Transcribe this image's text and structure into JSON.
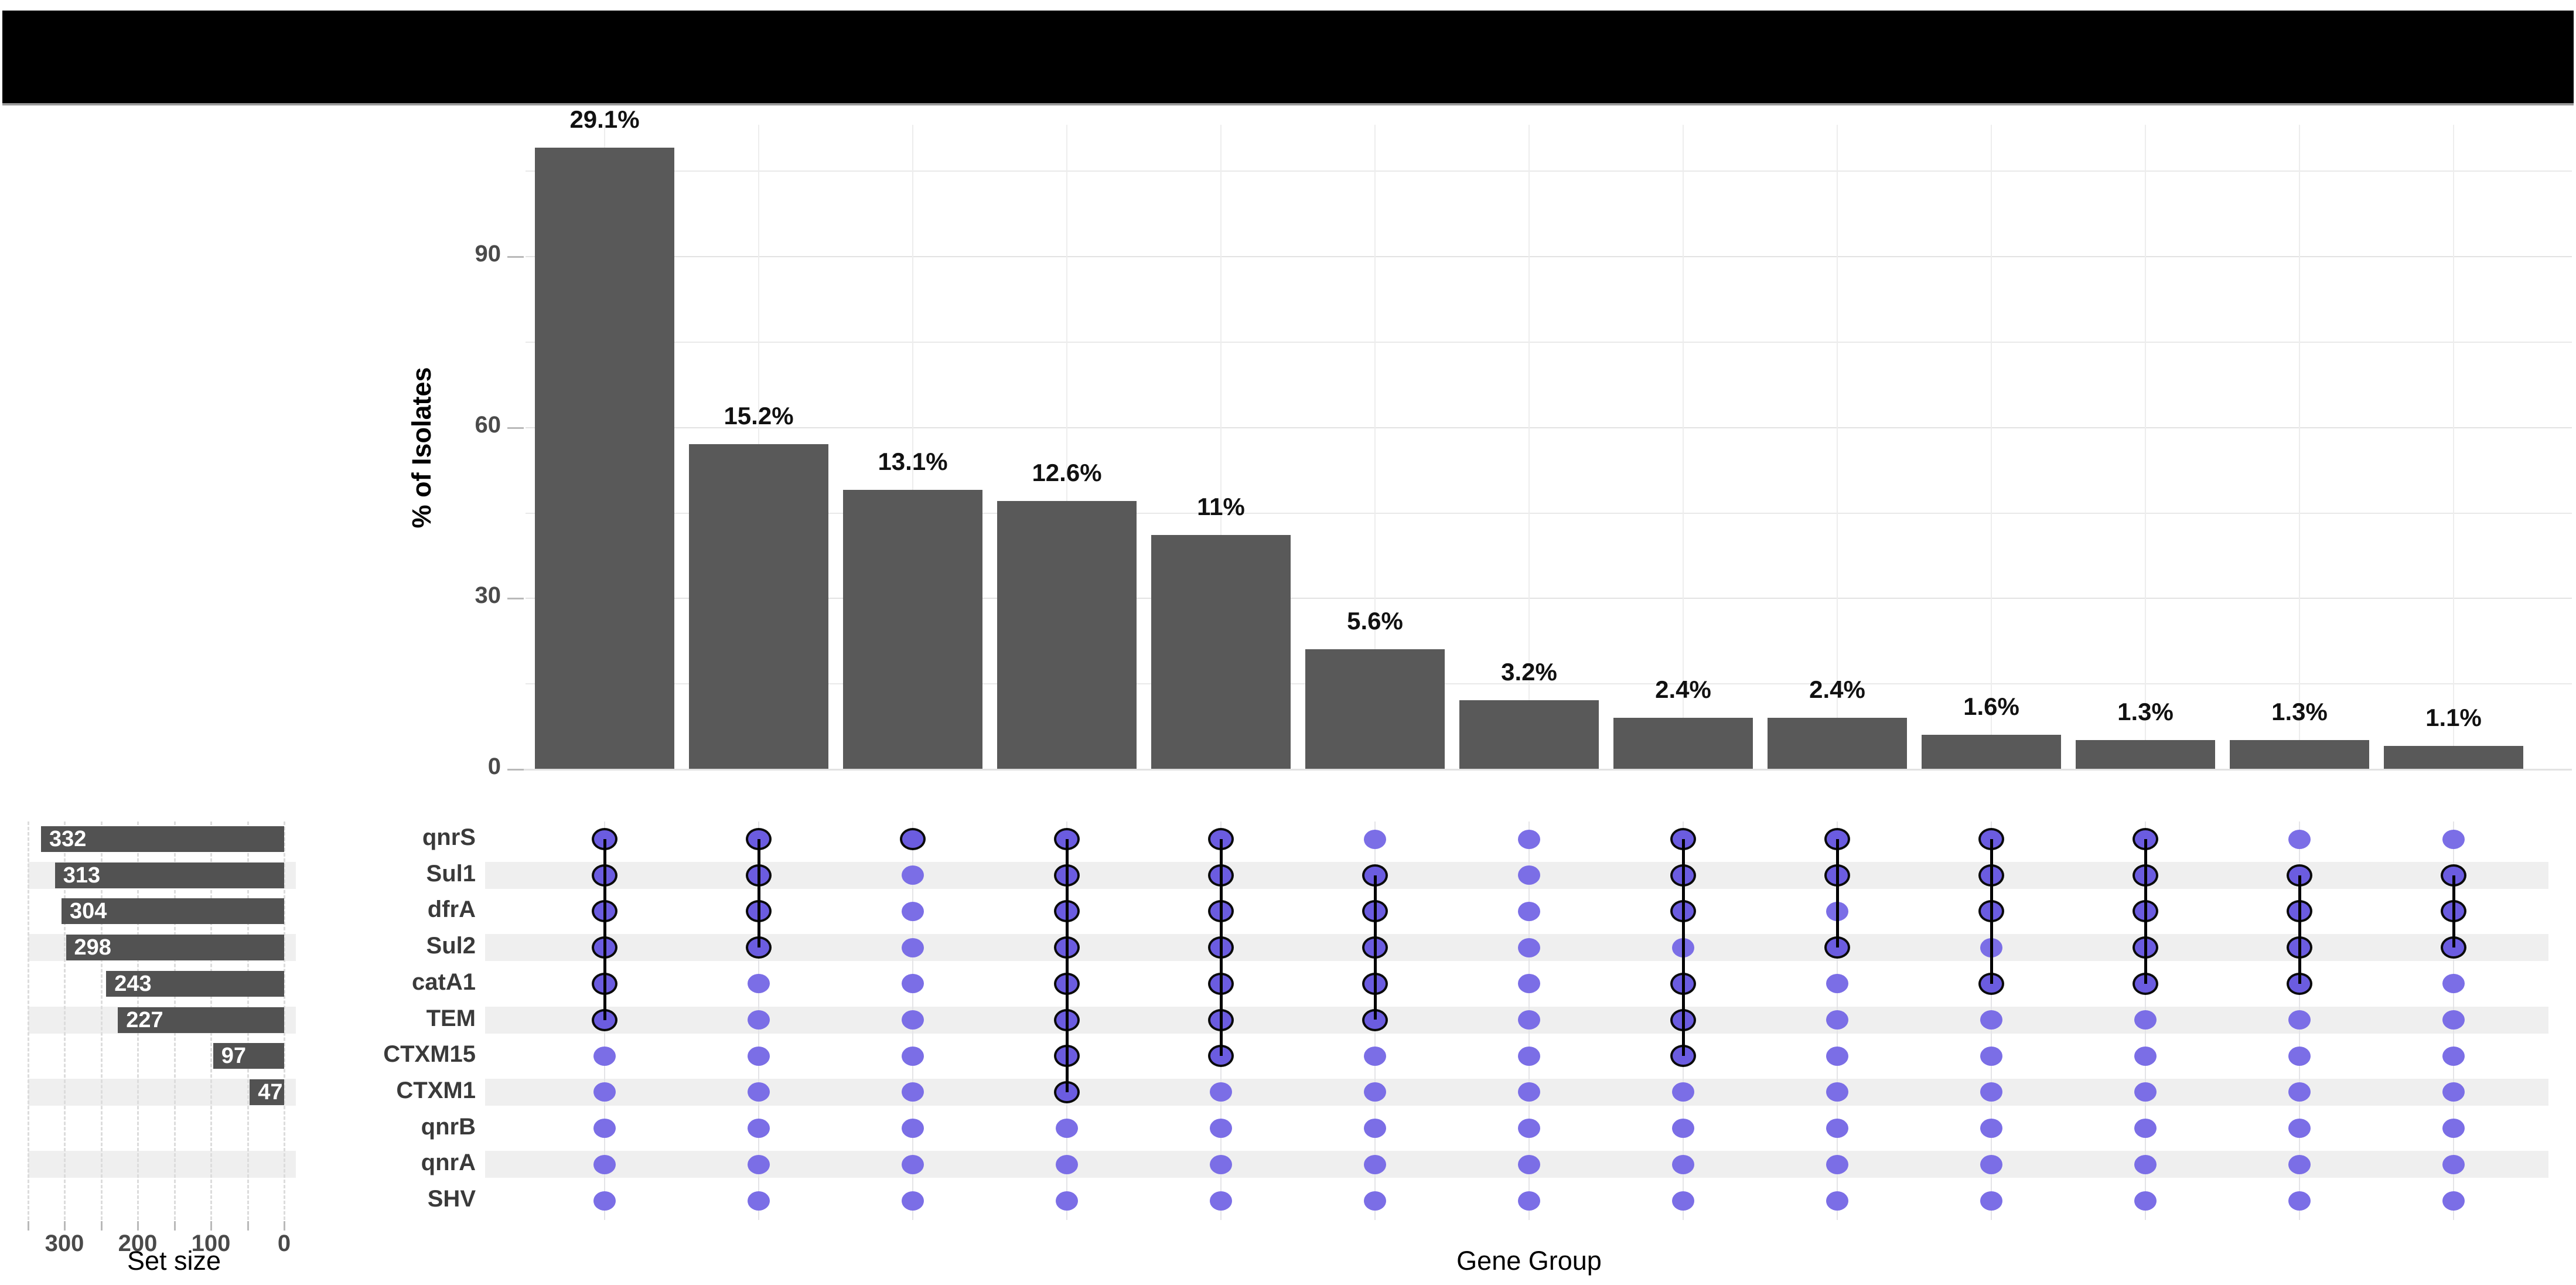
{
  "banner": {
    "note": ""
  },
  "colors": {
    "background": "#ffffff",
    "banner": "#000000",
    "intersection_bar": "#595959",
    "set_size_bar": "#525252",
    "row_stripe": "#efefef",
    "dot_member": "#6b5ce0",
    "dot_nonmember": "#7b6ee6",
    "connector": "#000000",
    "gridline": "#e9e9e9",
    "axis_text": "#4a4a4a",
    "bar_value_text": "#ffffff"
  },
  "chart_data": {
    "type": "upset",
    "title": "",
    "xlabel": "Gene Group",
    "ylabel": "% of Isolates",
    "set_size_label": "Set size",
    "genes": [
      "qnrS",
      "Sul1",
      "dfrA",
      "Sul2",
      "catA1",
      "TEM",
      "CTXM15",
      "CTXM1",
      "qnrB",
      "qnrA",
      "SHV"
    ],
    "set_sizes": [
      332,
      313,
      304,
      298,
      243,
      227,
      97,
      47,
      null,
      null,
      null
    ],
    "set_size_axis": {
      "ticks": [
        300,
        200,
        100,
        0
      ],
      "minor_ticks": [
        350,
        250,
        150,
        50
      ],
      "max": 348
    },
    "intersection_axis": {
      "ticks": [
        0,
        30,
        60,
        90
      ],
      "minor_ticks": [
        15,
        45,
        75,
        105
      ],
      "max": 113
    },
    "intersections": [
      {
        "pct_label": "29.1%",
        "count": 109,
        "members": [
          "qnrS",
          "Sul1",
          "dfrA",
          "Sul2",
          "catA1",
          "TEM"
        ]
      },
      {
        "pct_label": "15.2%",
        "count": 57,
        "members": [
          "qnrS",
          "Sul1",
          "dfrA",
          "Sul2"
        ]
      },
      {
        "pct_label": "13.1%",
        "count": 49,
        "members": [
          "qnrS"
        ]
      },
      {
        "pct_label": "12.6%",
        "count": 47,
        "members": [
          "qnrS",
          "Sul1",
          "dfrA",
          "Sul2",
          "catA1",
          "TEM",
          "CTXM15",
          "CTXM1"
        ]
      },
      {
        "pct_label": "11%",
        "count": 41,
        "members": [
          "qnrS",
          "Sul1",
          "dfrA",
          "Sul2",
          "catA1",
          "TEM",
          "CTXM15"
        ]
      },
      {
        "pct_label": "5.6%",
        "count": 21,
        "members": [
          "Sul1",
          "dfrA",
          "Sul2",
          "catA1",
          "TEM"
        ]
      },
      {
        "pct_label": "3.2%",
        "count": 12,
        "members": []
      },
      {
        "pct_label": "2.4%",
        "count": 9,
        "members": [
          "qnrS",
          "Sul1",
          "dfrA",
          "catA1",
          "TEM",
          "CTXM15"
        ]
      },
      {
        "pct_label": "2.4%",
        "count": 9,
        "members": [
          "qnrS",
          "Sul1",
          "Sul2"
        ]
      },
      {
        "pct_label": "1.6%",
        "count": 6,
        "members": [
          "qnrS",
          "Sul1",
          "dfrA",
          "catA1"
        ]
      },
      {
        "pct_label": "1.3%",
        "count": 5,
        "members": [
          "qnrS",
          "Sul1",
          "dfrA",
          "Sul2",
          "catA1"
        ]
      },
      {
        "pct_label": "1.3%",
        "count": 5,
        "members": [
          "Sul1",
          "dfrA",
          "Sul2",
          "catA1"
        ]
      },
      {
        "pct_label": "1.1%",
        "count": 4,
        "members": [
          "Sul1",
          "dfrA",
          "Sul2"
        ]
      }
    ]
  }
}
